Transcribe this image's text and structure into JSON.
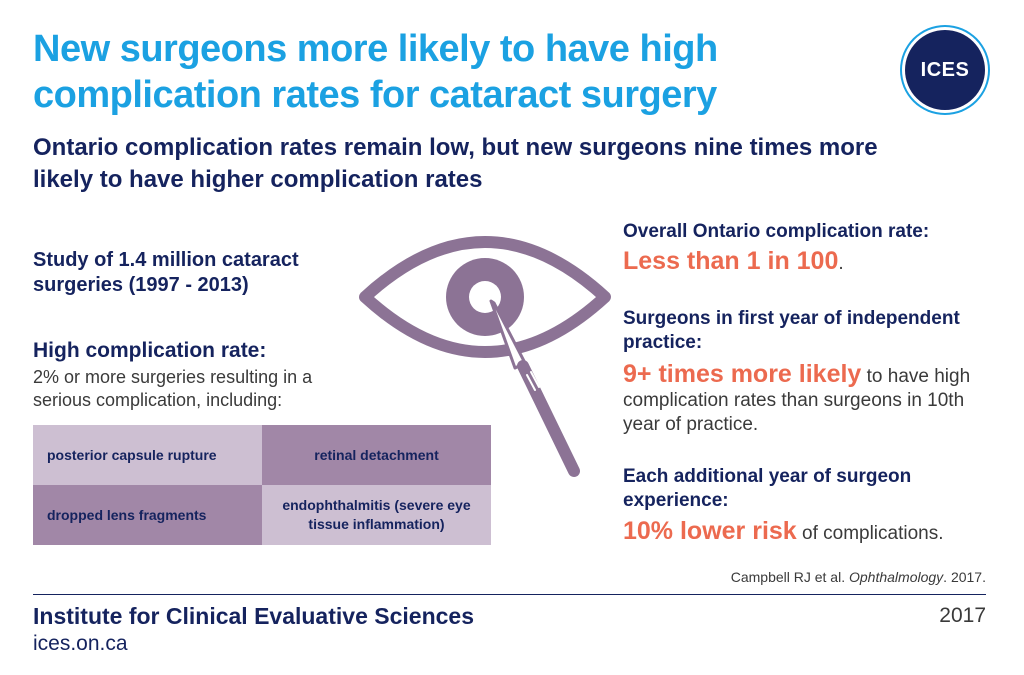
{
  "header": {
    "title": "New surgeons more likely to have high complication rates for cataract surgery",
    "subtitle": "Ontario complication rates remain low, but new surgeons nine times more likely to have higher complication rates",
    "logo_text": "ICES"
  },
  "left": {
    "study": "Study of 1.4 million cataract surgeries (1997 - 2013)",
    "high_rate_heading": "High complication rate:",
    "high_rate_description": "2% or more surgeries resulting in a serious complication, including:",
    "complications": [
      "posterior capsule rupture",
      "retinal detachment",
      "dropped lens fragments",
      "endophthalmitis (severe eye tissue inflammation)"
    ]
  },
  "right": {
    "overall": {
      "heading": "Overall Ontario complication rate:",
      "value": "Less than 1 in 100",
      "suffix": "."
    },
    "first_year": {
      "heading": "Surgeons in first year of independent practice:",
      "value": "9+ times more likely",
      "text": " to have high complication rates than surgeons in 10th year of practice."
    },
    "experience": {
      "heading": "Each additional year of surgeon experience:",
      "value": "10% lower risk",
      "text": " of complications."
    }
  },
  "citation": {
    "authors": "Campbell RJ et al. ",
    "journal": "Ophthalmology",
    "year": ". 2017."
  },
  "footer": {
    "institute": "Institute for Clinical Evaluative Sciences",
    "url": "ices.on.ca",
    "year": "2017"
  },
  "colors": {
    "title_blue": "#1ba1e2",
    "navy": "#15235e",
    "highlight_orange": "#ec6a4f",
    "purple_dark": "#a187a7",
    "purple_light": "#cdbfd2",
    "eye_purple": "#8c7395"
  },
  "icons": {
    "eye": "eye-with-scalpel-icon"
  }
}
